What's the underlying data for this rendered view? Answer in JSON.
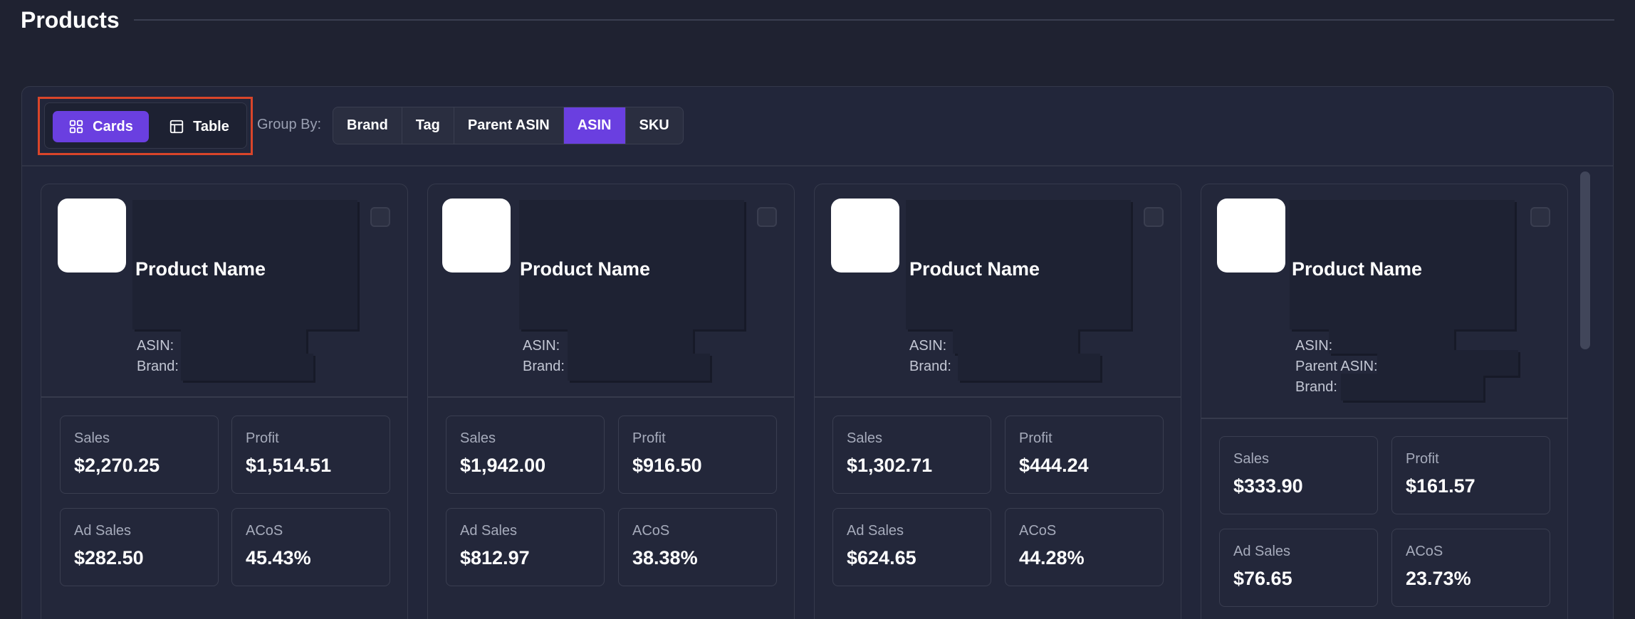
{
  "page": {
    "title": "Products"
  },
  "toolbar": {
    "view_toggle": {
      "cards_label": "Cards",
      "table_label": "Table",
      "active": "Cards"
    },
    "group_by_label": "Group By:",
    "group_by_options": [
      "Brand",
      "Tag",
      "Parent ASIN",
      "ASIN",
      "SKU"
    ],
    "group_by_active": "ASIN"
  },
  "colors": {
    "accent": "#6a3fe0",
    "highlight_border": "#d9452a",
    "background": "#1f2231"
  },
  "cards": [
    {
      "name": "Product Name",
      "meta": [
        "ASIN:",
        "Brand:"
      ],
      "metrics": [
        {
          "label": "Sales",
          "value": "$2,270.25"
        },
        {
          "label": "Profit",
          "value": "$1,514.51"
        },
        {
          "label": "Ad Sales",
          "value": "$282.50"
        },
        {
          "label": "ACoS",
          "value": "45.43%"
        }
      ]
    },
    {
      "name": "Product Name",
      "meta": [
        "ASIN:",
        "Brand:"
      ],
      "metrics": [
        {
          "label": "Sales",
          "value": "$1,942.00"
        },
        {
          "label": "Profit",
          "value": "$916.50"
        },
        {
          "label": "Ad Sales",
          "value": "$812.97"
        },
        {
          "label": "ACoS",
          "value": "38.38%"
        }
      ]
    },
    {
      "name": "Product Name",
      "meta": [
        "ASIN:",
        "Brand:"
      ],
      "metrics": [
        {
          "label": "Sales",
          "value": "$1,302.71"
        },
        {
          "label": "Profit",
          "value": "$444.24"
        },
        {
          "label": "Ad Sales",
          "value": "$624.65"
        },
        {
          "label": "ACoS",
          "value": "44.28%"
        }
      ]
    },
    {
      "name": "Product Name",
      "meta": [
        "ASIN:",
        "Parent ASIN:",
        "Brand:"
      ],
      "metrics": [
        {
          "label": "Sales",
          "value": "$333.90"
        },
        {
          "label": "Profit",
          "value": "$161.57"
        },
        {
          "label": "Ad Sales",
          "value": "$76.65"
        },
        {
          "label": "ACoS",
          "value": "23.73%"
        }
      ]
    }
  ]
}
